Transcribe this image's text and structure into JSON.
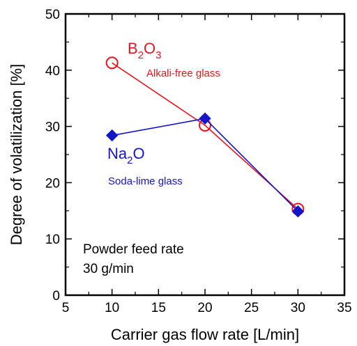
{
  "chart_data": {
    "type": "line",
    "xlabel": "Carrier gas flow rate [L/min]",
    "ylabel": "Degree of volatilization [%]",
    "xlim": [
      5,
      35
    ],
    "ylim": [
      0,
      50
    ],
    "xticks": [
      5,
      10,
      15,
      20,
      25,
      30,
      35
    ],
    "yticks": [
      0,
      10,
      20,
      30,
      40,
      50
    ],
    "grid": false,
    "series": [
      {
        "formula": "B2O3",
        "formula_parts": [
          "B",
          "2",
          "O",
          "3"
        ],
        "sublabel": "Alkali-free glass",
        "color": "#e8141c",
        "marker": "open-circle",
        "x": [
          10,
          20,
          30
        ],
        "y": [
          41.3,
          30.2,
          15.3
        ]
      },
      {
        "formula": "Na2O",
        "formula_parts": [
          "Na",
          "2",
          "O"
        ],
        "sublabel": "Soda-lime glass",
        "color": "#1414c8",
        "marker": "filled-diamond",
        "x": [
          10,
          20,
          30
        ],
        "y": [
          28.4,
          31.4,
          14.9
        ]
      }
    ],
    "annotation": {
      "lines": [
        "Powder feed rate",
        "30 g/min"
      ]
    }
  }
}
